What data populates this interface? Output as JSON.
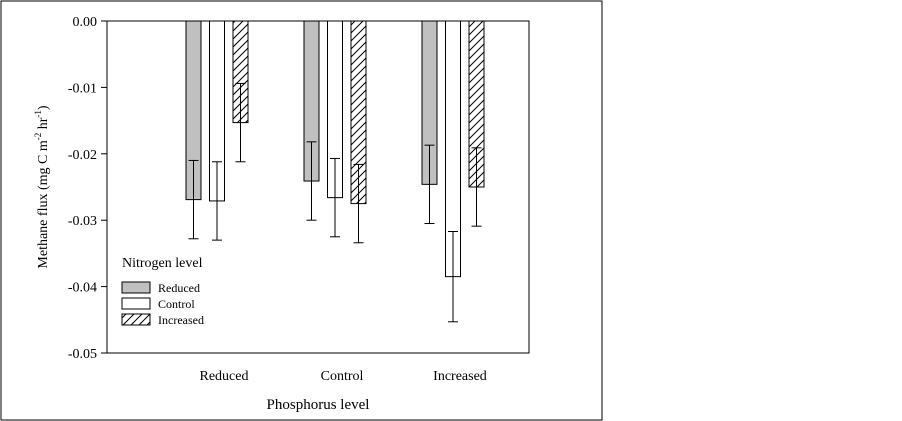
{
  "chart_data": {
    "type": "bar",
    "title": "",
    "xlabel": "Phosphorus level",
    "ylabel": "Methane flux (mg C m-2 hr-1)",
    "ylabel_parts": {
      "main": "Methane flux (mg C m",
      "sup1": "-2",
      "mid": " hr",
      "sup2": "-1",
      "end": ")"
    },
    "ylim": [
      -0.05,
      0.0
    ],
    "yticks": [
      0.0,
      -0.01,
      -0.02,
      -0.03,
      -0.04,
      -0.05
    ],
    "ytick_labels": [
      "0.00",
      "-0.01",
      "-0.02",
      "-0.03",
      "-0.04",
      "-0.05"
    ],
    "categories": [
      "Reduced",
      "Control",
      "Increased"
    ],
    "grid": false,
    "legend": {
      "title": "Nitrogen level",
      "placement": "lower-left"
    },
    "series": [
      {
        "name": "Reduced",
        "style": "solid-gray",
        "color": "#c0c0c0",
        "values": [
          -0.0269,
          -0.0241,
          -0.0246
        ],
        "errors": [
          0.0059,
          0.0059,
          0.0059
        ]
      },
      {
        "name": "Control",
        "style": "open",
        "color": "#ffffff",
        "values": [
          -0.0271,
          -0.0266,
          -0.0385
        ],
        "errors": [
          0.0059,
          0.0059,
          0.0068
        ]
      },
      {
        "name": "Increased",
        "style": "hatched",
        "color": "#ffffff",
        "values": [
          -0.0153,
          -0.0275,
          -0.025
        ],
        "errors": [
          0.0059,
          0.0059,
          0.0059
        ]
      }
    ]
  }
}
